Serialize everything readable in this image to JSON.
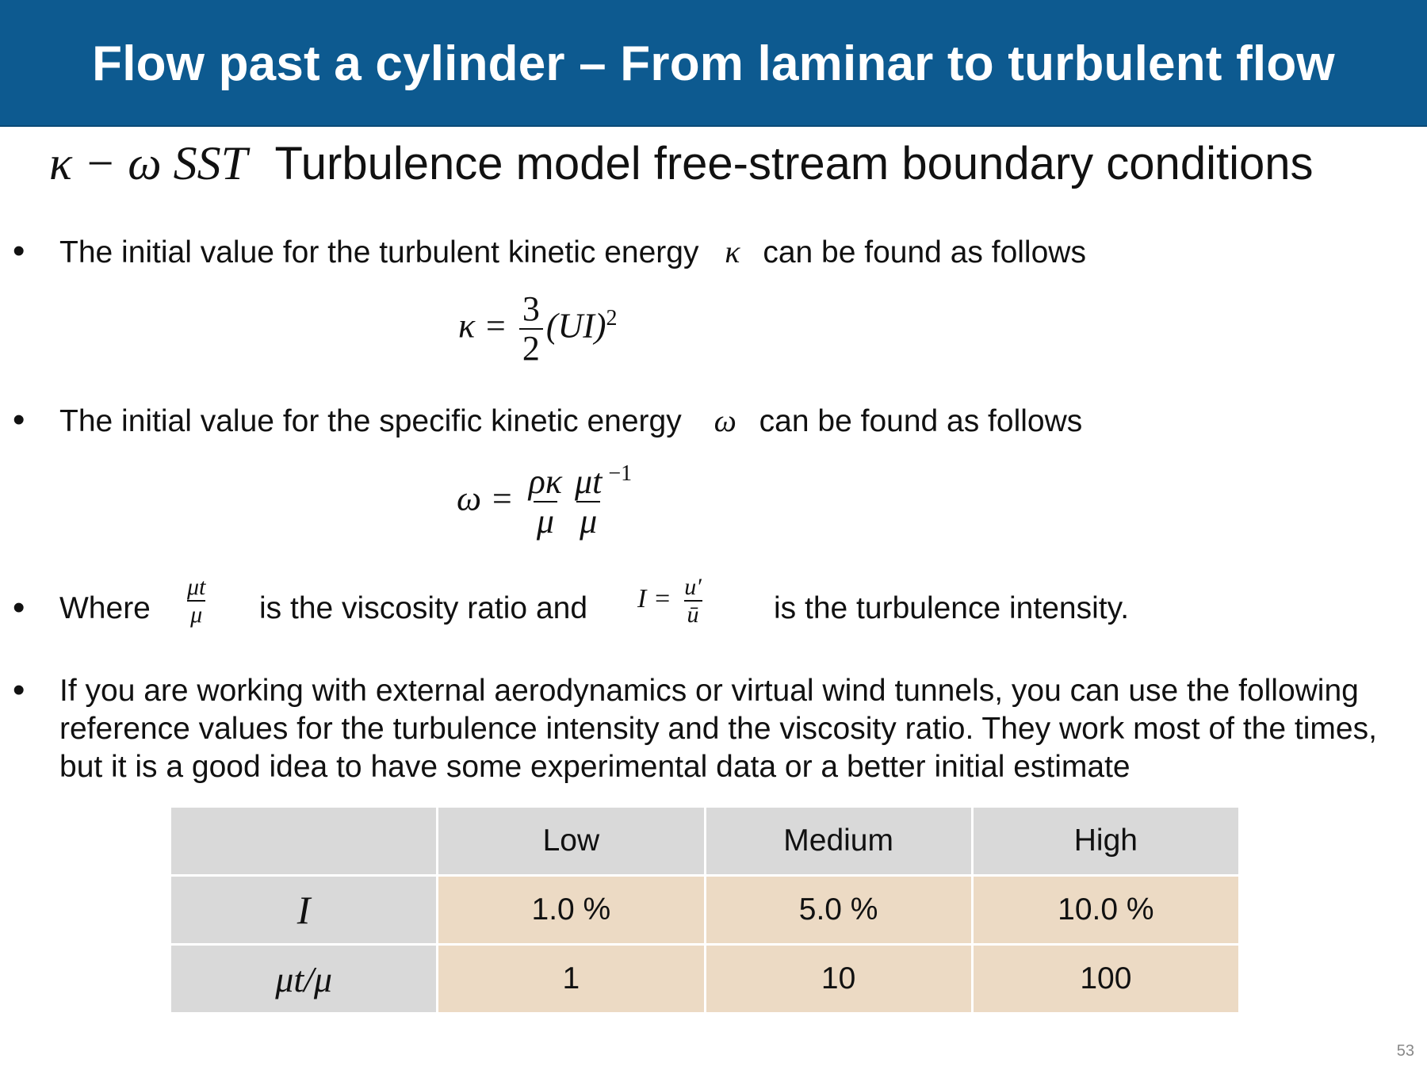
{
  "slide": {
    "title": "Flow past a cylinder – From laminar to turbulent flow",
    "subtitle_symbol": "κ − ω SST",
    "subtitle_text": "Turbulence model free-stream boundary conditions",
    "page_number": "53"
  },
  "bullets": {
    "b1_before": "The initial value for the turbulent kinetic energy",
    "b1_symbol": "κ",
    "b1_after": "can be found as follows",
    "b2_before": "The initial value for the specific kinetic energy",
    "b2_symbol": "ω",
    "b2_after": "can be found as follows",
    "b3_lead": "Where",
    "b3_mid": "is the viscosity ratio and",
    "b3_end": "is the turbulence intensity.",
    "b4": "If you are working with external aerodynamics or virtual wind tunnels, you can use the following reference values for the turbulence intensity and the viscosity ratio.  They work most of the times, but it is a good idea to have some experimental data or a better initial estimate"
  },
  "equations": {
    "k_lhs": "κ =",
    "k_num": "3",
    "k_den": "2",
    "k_rhs": "(UI)",
    "k_exp": "2",
    "w_lhs": "ω =",
    "w_num1": "ρκ",
    "w_den1": "μ",
    "w_num2": "μt",
    "w_den2": "μ",
    "w_exp": "−1",
    "ratio_num": "μt",
    "ratio_den": "μ",
    "i_lhs": "I =",
    "i_num": "u′",
    "i_den": "ū"
  },
  "table": {
    "headers": [
      "",
      "Low",
      "Medium",
      "High"
    ],
    "rows": [
      {
        "label": "I",
        "values": [
          "1.0 %",
          "5.0 %",
          "10.0 %"
        ]
      },
      {
        "label": "μt/μ",
        "values": [
          "1",
          "10",
          "100"
        ]
      }
    ]
  }
}
